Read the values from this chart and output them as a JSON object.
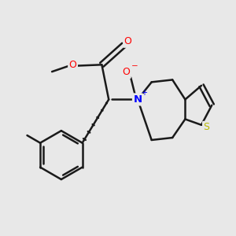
{
  "bg_color": "#e8e8e8",
  "bond_color": "#1a1a1a",
  "bond_width": 1.8,
  "atom_colors": {
    "O": "#ff0000",
    "N": "#0000ff",
    "S": "#b8b800",
    "C": "#1a1a1a"
  },
  "fig_size": [
    3.0,
    3.0
  ],
  "dpi": 100,
  "xlim": [
    0,
    10
  ],
  "ylim": [
    0,
    10
  ]
}
